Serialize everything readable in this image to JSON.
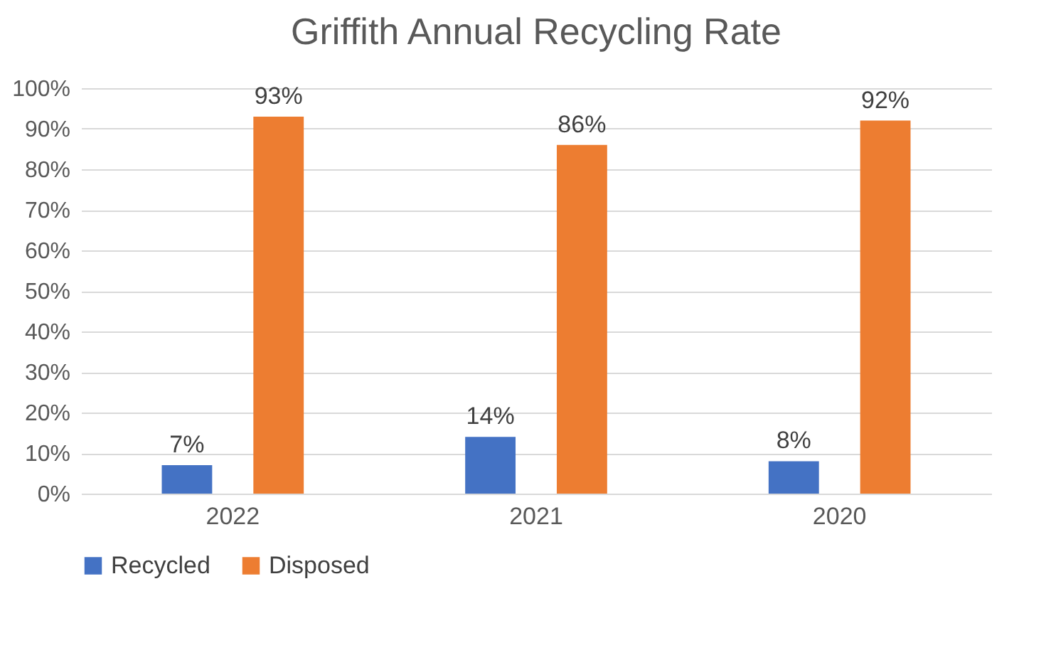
{
  "chart_data": {
    "type": "bar",
    "title": "Griffith Annual Recycling Rate",
    "categories": [
      "2022",
      "2021",
      "2020"
    ],
    "series": [
      {
        "name": "Recycled",
        "color": "#4472c4",
        "values": [
          7,
          14,
          8
        ],
        "value_labels": [
          "7%",
          "14%",
          "8%"
        ]
      },
      {
        "name": "Disposed",
        "color": "#ed7d31",
        "values": [
          93,
          86,
          92
        ],
        "value_labels": [
          "93%",
          "86%",
          "92%"
        ]
      }
    ],
    "ylim": [
      0,
      100
    ],
    "yticks": [
      {
        "value": 0,
        "label": "0%"
      },
      {
        "value": 10,
        "label": "10%"
      },
      {
        "value": 20,
        "label": "20%"
      },
      {
        "value": 30,
        "label": "30%"
      },
      {
        "value": 40,
        "label": "40%"
      },
      {
        "value": 50,
        "label": "50%"
      },
      {
        "value": 60,
        "label": "60%"
      },
      {
        "value": 70,
        "label": "70%"
      },
      {
        "value": 80,
        "label": "80%"
      },
      {
        "value": 90,
        "label": "90%"
      },
      {
        "value": 100,
        "label": "100%"
      }
    ],
    "grid": "y",
    "legend": "bottom"
  }
}
